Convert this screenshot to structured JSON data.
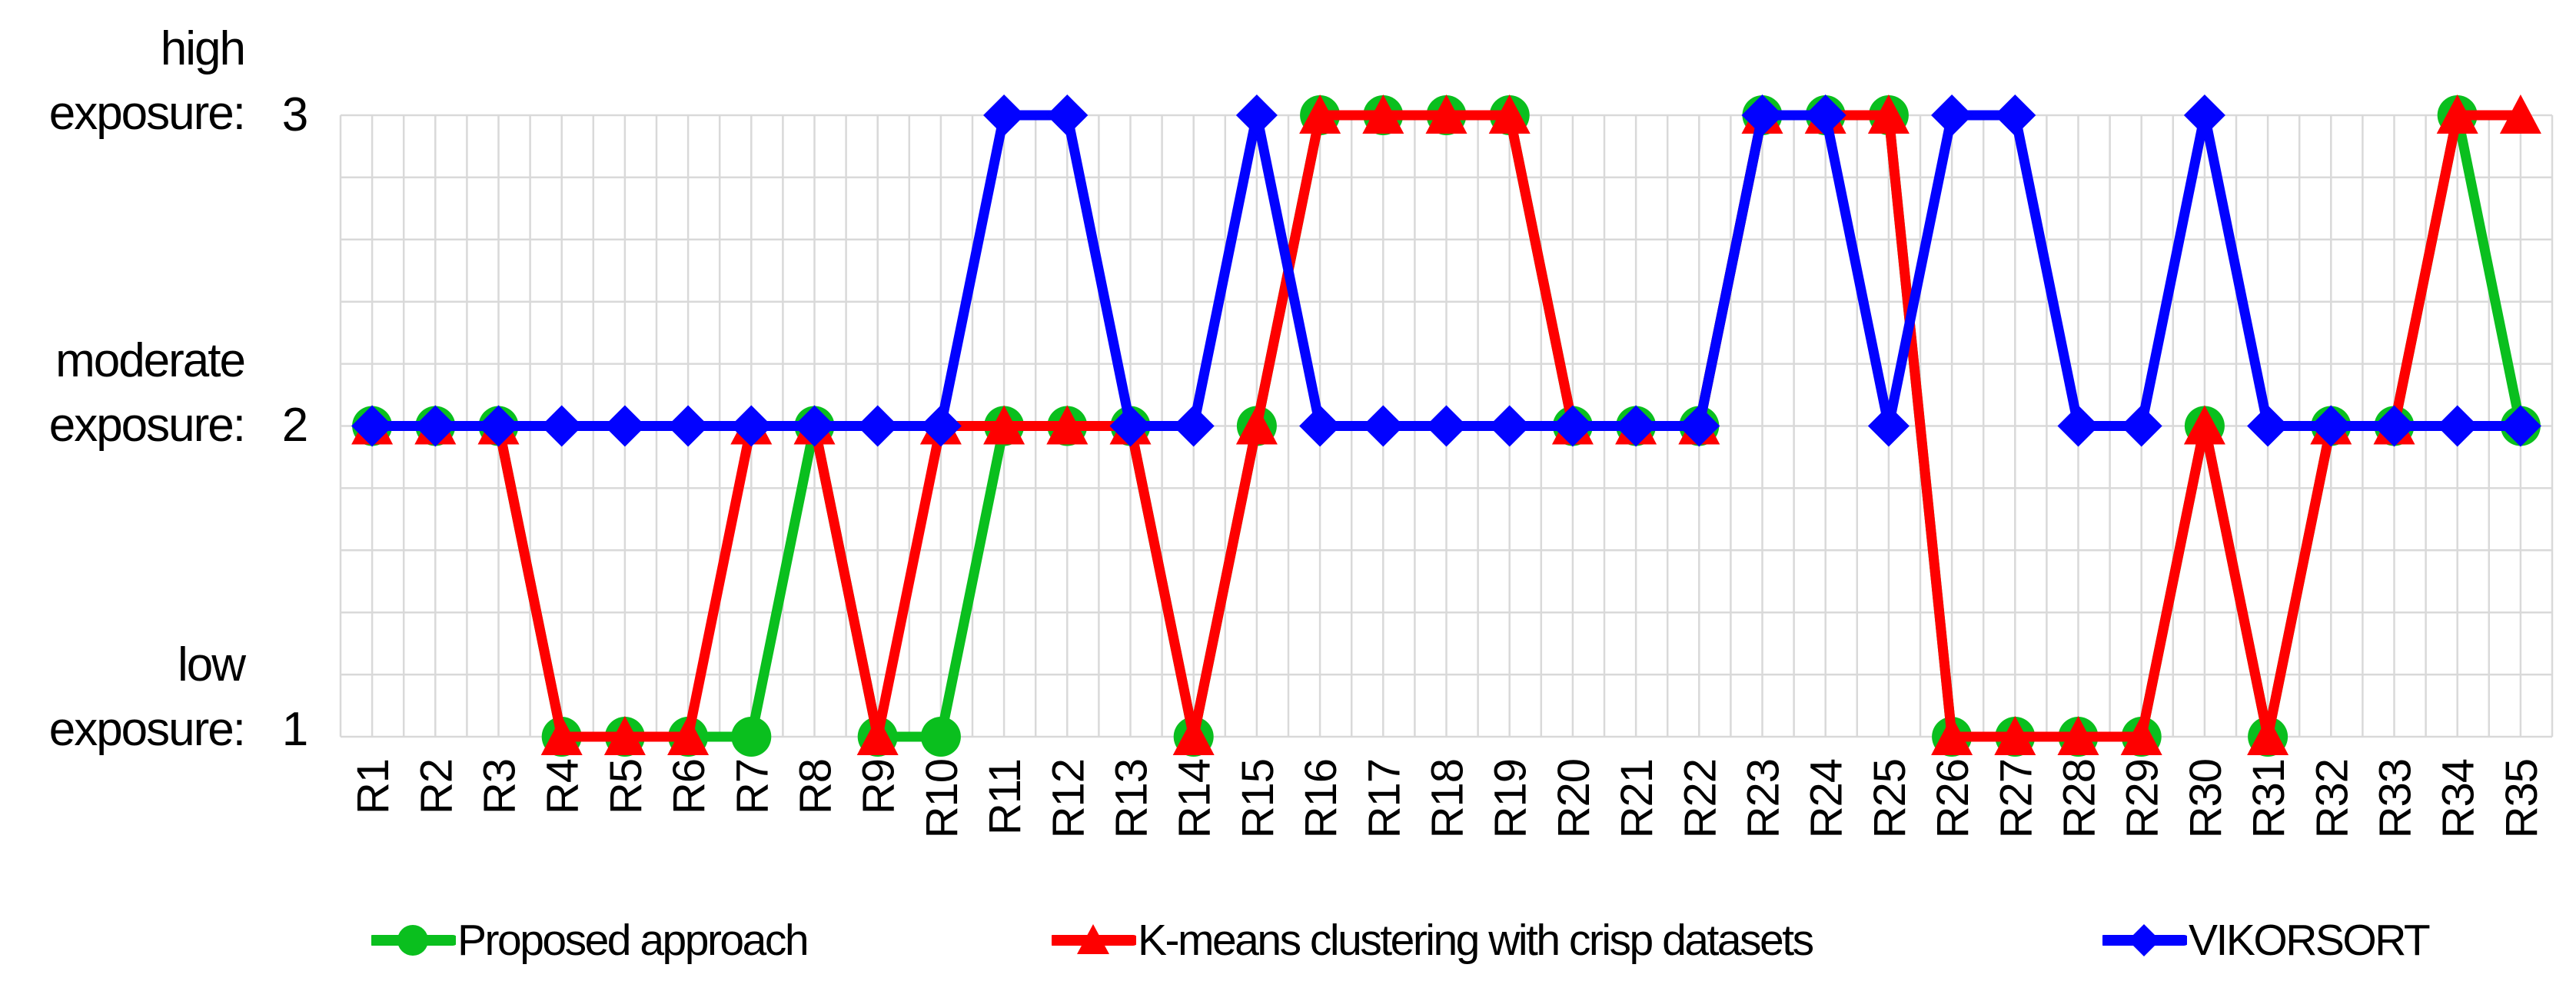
{
  "chart_data": {
    "type": "line",
    "title": "",
    "xlabel": "",
    "ylabel": "",
    "categories": [
      "R1",
      "R2",
      "R3",
      "R4",
      "R5",
      "R6",
      "R7",
      "R8",
      "R9",
      "R10",
      "R11",
      "R12",
      "R13",
      "R14",
      "R15",
      "R16",
      "R17",
      "R18",
      "R19",
      "R20",
      "R21",
      "R22",
      "R23",
      "R24",
      "R25",
      "R26",
      "R27",
      "R28",
      "R29",
      "R30",
      "R31",
      "R32",
      "R33",
      "R34",
      "R35"
    ],
    "series": [
      {
        "name": "Proposed approach",
        "marker": "circle",
        "color": "#0ABF1E",
        "values": [
          2,
          2,
          2,
          1,
          1,
          1,
          1,
          2,
          1,
          1,
          2,
          2,
          2,
          1,
          2,
          3,
          3,
          3,
          3,
          2,
          2,
          2,
          3,
          3,
          3,
          1,
          1,
          1,
          1,
          2,
          1,
          2,
          2,
          3,
          2
        ]
      },
      {
        "name": "K-means clustering with crisp datasets",
        "marker": "triangle",
        "color": "#FE0000",
        "values": [
          2,
          2,
          2,
          1,
          1,
          1,
          2,
          2,
          1,
          2,
          2,
          2,
          2,
          1,
          2,
          3,
          3,
          3,
          3,
          2,
          2,
          2,
          3,
          3,
          3,
          1,
          1,
          1,
          1,
          2,
          1,
          2,
          2,
          3,
          3
        ]
      },
      {
        "name": "VIKORSORT",
        "marker": "diamond",
        "color": "#0202FF",
        "values": [
          2,
          2,
          2,
          2,
          2,
          2,
          2,
          2,
          2,
          2,
          3,
          3,
          2,
          2,
          3,
          2,
          2,
          2,
          2,
          2,
          2,
          2,
          3,
          3,
          2,
          3,
          3,
          2,
          2,
          3,
          2,
          2,
          2,
          2,
          2
        ]
      }
    ],
    "y_axis": {
      "min": 1,
      "max": 3,
      "minor_step": 0.2,
      "labels": [
        {
          "line1": "high",
          "line2": "exposure:",
          "tick": "3",
          "value": 3
        },
        {
          "line1": "moderate",
          "line2": "exposure:",
          "tick": "2",
          "value": 2
        },
        {
          "line1": "low",
          "line2": "exposure:",
          "tick": "1",
          "value": 1
        }
      ]
    },
    "grid": true,
    "grid_color": "#D9D9D9",
    "legend_position": "bottom"
  }
}
